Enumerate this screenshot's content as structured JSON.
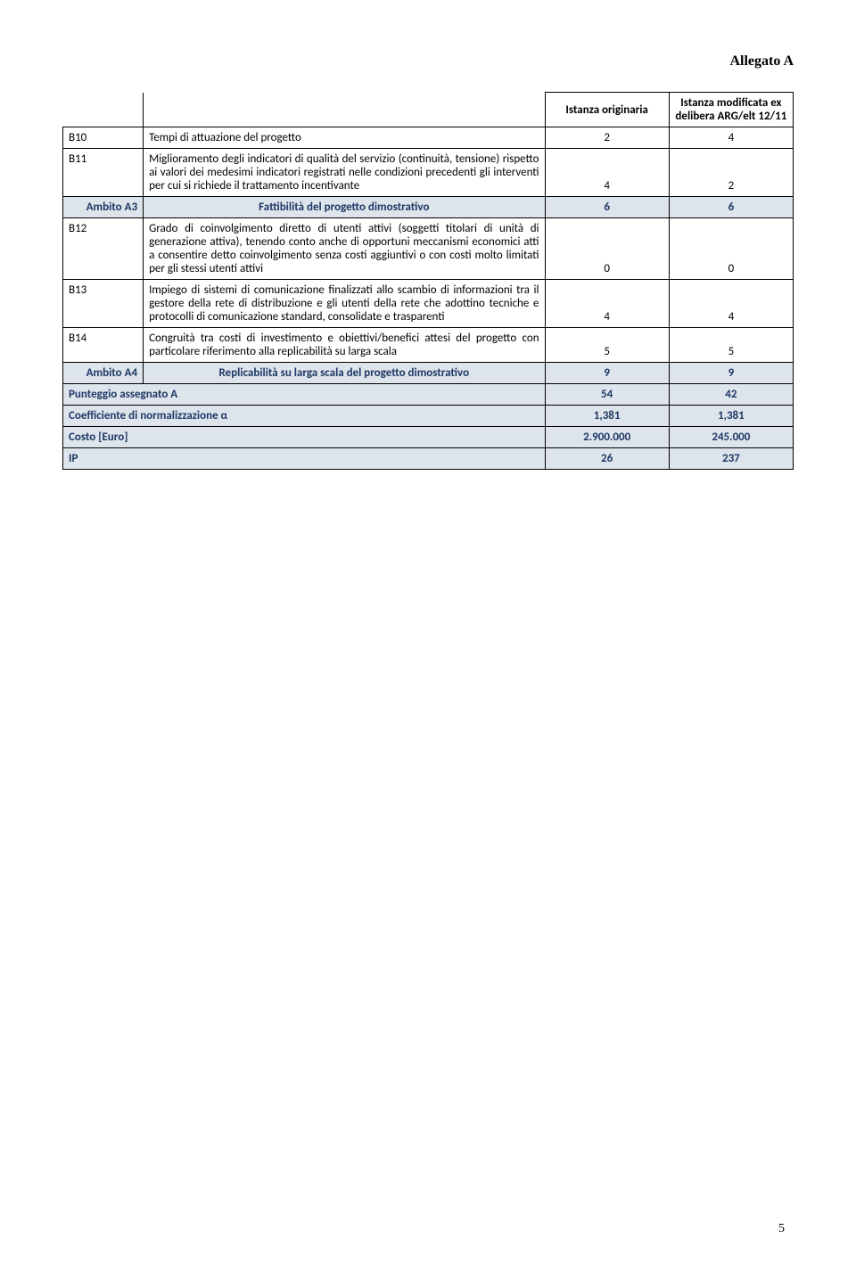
{
  "header": "Allegato A",
  "columns": {
    "c1": "Istanza originaria",
    "c2": "Istanza modificata ex delibera ARG/elt 12/11"
  },
  "rows": {
    "b10": {
      "code": "B10",
      "desc": "Tempi di attuazione del progetto",
      "v1": "2",
      "v2": "4"
    },
    "b11": {
      "code": "B11",
      "desc": "Miglioramento degli indicatori di qualità del servizio (continuità, tensione) rispetto ai valori dei medesimi indicatori registrati nelle condizioni precedenti gli interventi per cui si richiede il trattamento incentivante",
      "v1": "4",
      "v2": "2"
    },
    "a3": {
      "code": "Ambito A3",
      "desc": "Fattibilità del progetto dimostrativo",
      "v1": "6",
      "v2": "6"
    },
    "b12": {
      "code": "B12",
      "desc": "Grado di coinvolgimento diretto di utenti attivi (soggetti titolari di unità di generazione attiva), tenendo conto anche di opportuni meccanismi economici atti a consentire detto coinvolgimento senza costi aggiuntivi o con costi molto limitati per gli stessi utenti attivi",
      "v1": "0",
      "v2": "0"
    },
    "b13": {
      "code": "B13",
      "desc": "Impiego di sistemi di comunicazione finalizzati allo scambio di informazioni tra il gestore della rete di distribuzione e gli utenti della rete che adottino tecniche e protocolli di comunicazione standard, consolidate e trasparenti",
      "v1": "4",
      "v2": "4"
    },
    "b14": {
      "code": "B14",
      "desc": "Congruità tra costi di investimento e obiettivi/benefici attesi del progetto con particolare riferimento alla replicabilità su larga scala",
      "v1": "5",
      "v2": "5"
    },
    "a4": {
      "code": "Ambito A4",
      "desc": "Replicabilità su larga scala del progetto dimostrativo",
      "v1": "9",
      "v2": "9"
    },
    "punteggio": {
      "label": "Punteggio assegnato A",
      "v1": "54",
      "v2": "42"
    },
    "coeff": {
      "label": "Coefficiente di normalizzazione α",
      "v1": "1,381",
      "v2": "1,381"
    },
    "costo": {
      "label": "Costo [Euro]",
      "v1": "2.900.000",
      "v2": "245.000"
    },
    "ip": {
      "label": "IP",
      "v1": "26",
      "v2": "237"
    }
  },
  "page_number": "5"
}
